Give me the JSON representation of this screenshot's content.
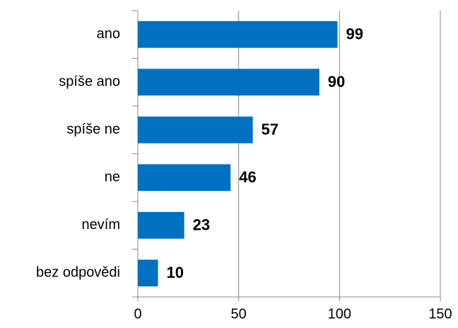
{
  "chart_data": {
    "type": "hbar",
    "categories": [
      "ano",
      "spíše ano",
      "spíše ne",
      "ne",
      "nevím",
      "bez odpovědi"
    ],
    "values": [
      99,
      90,
      57,
      46,
      23,
      10
    ],
    "color": "#0070c0",
    "xlim": [
      0,
      150
    ],
    "xticks": [
      0,
      50,
      100,
      150
    ],
    "grid": true
  }
}
